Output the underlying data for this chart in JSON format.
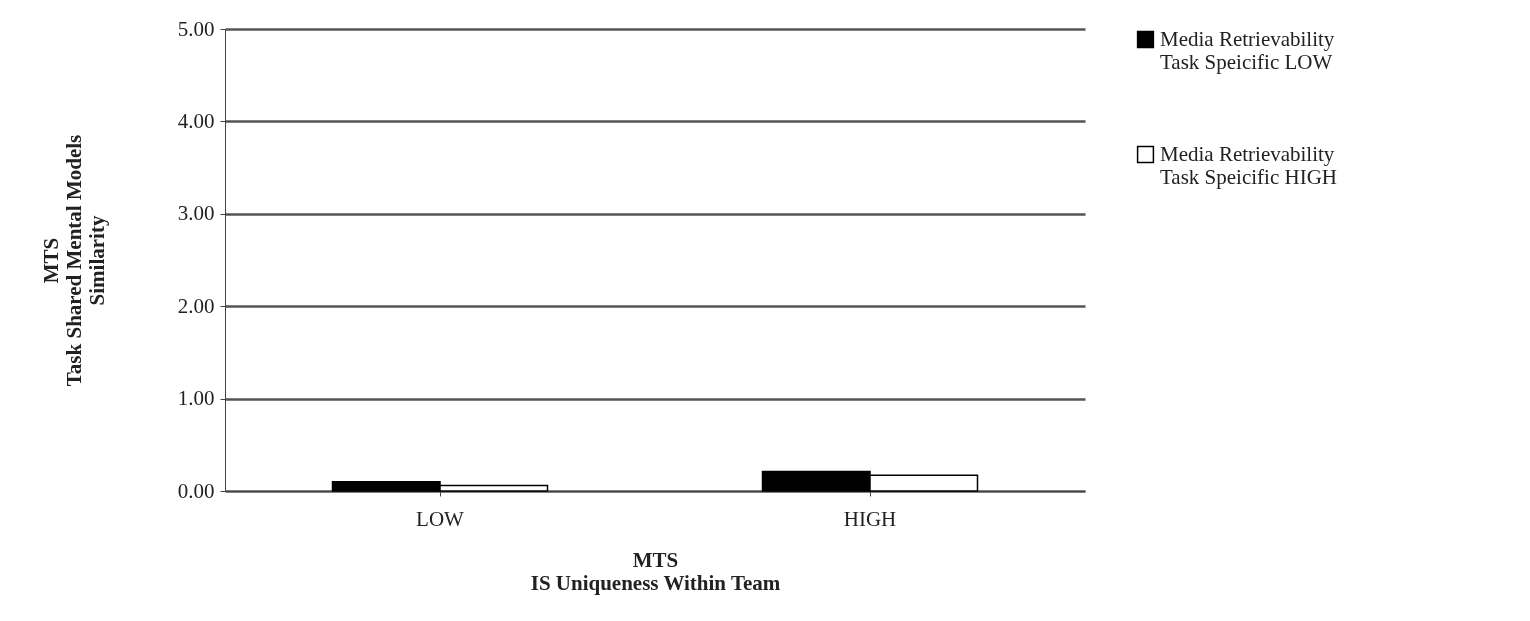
{
  "chart_data": {
    "type": "bar",
    "xlabel": "MTS\nIS Uniqueness Within Team",
    "ylabel": "MTS\nTask Shared Mental Models\nSimilarity",
    "categories": [
      "LOW",
      "HIGH"
    ],
    "series": [
      {
        "name": "Media Retrievability Task Speicific LOW",
        "color": "#000000",
        "values": [
          0.1,
          0.21
        ]
      },
      {
        "name": "Media Retrievability Task Speicific HIGH",
        "color": "#ffffff",
        "values": [
          0.06,
          0.17
        ]
      }
    ],
    "ylim": [
      0,
      5
    ],
    "yticks": [
      {
        "value": 0,
        "label": "0.00"
      },
      {
        "value": 1,
        "label": "1.00"
      },
      {
        "value": 2,
        "label": "2.00"
      },
      {
        "value": 3,
        "label": "3.00"
      },
      {
        "value": 4,
        "label": "4.00"
      },
      {
        "value": 5,
        "label": "5.00"
      }
    ],
    "grid": "y",
    "legend": "right"
  }
}
